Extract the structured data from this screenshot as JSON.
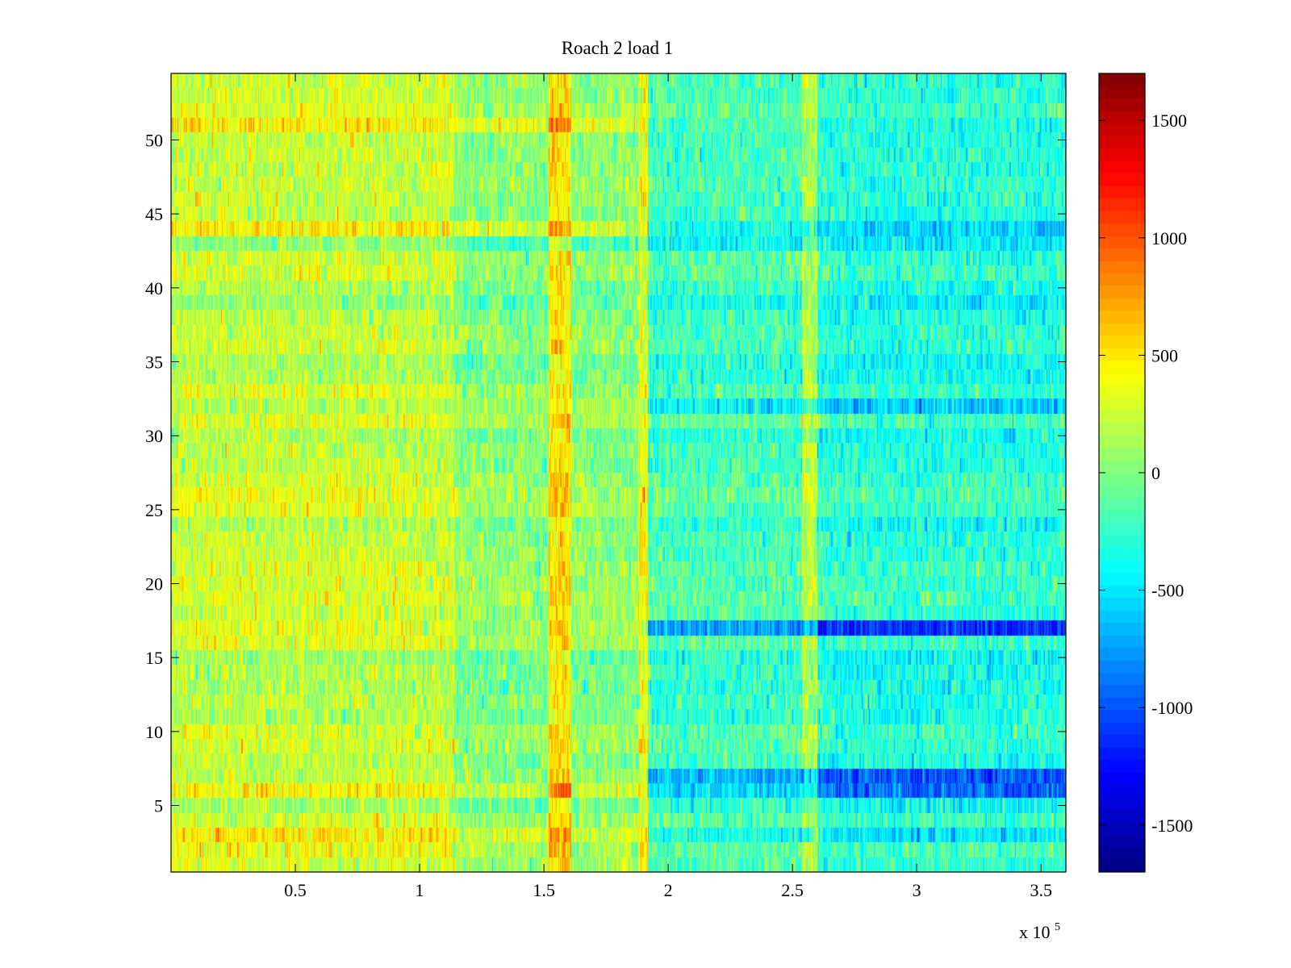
{
  "chart_data": {
    "type": "heatmap",
    "title": "Roach 2 load 1",
    "xlabel": "",
    "ylabel": "",
    "x_range": [
      0,
      360000
    ],
    "y_range": [
      0.5,
      54.5
    ],
    "rows": 54,
    "x_ticks": [
      50000,
      100000,
      150000,
      200000,
      250000,
      300000,
      350000
    ],
    "x_tick_labels": [
      "0.5",
      "1",
      "1.5",
      "2",
      "2.5",
      "3",
      "3.5"
    ],
    "x_exponent_label": {
      "base": "x 10",
      "exponent": "5"
    },
    "y_ticks": [
      5,
      10,
      15,
      20,
      25,
      30,
      35,
      40,
      45,
      50
    ],
    "y_tick_labels": [
      "5",
      "10",
      "15",
      "20",
      "25",
      "30",
      "35",
      "40",
      "45",
      "50"
    ],
    "colormap": "jet",
    "color_range": [
      -1700,
      1700
    ],
    "colorbar_ticks": [
      1500,
      1000,
      500,
      0,
      -500,
      -1000,
      -1500
    ],
    "colorbar_tick_labels": [
      "1500",
      "1000",
      "500",
      "0",
      "-500",
      "-1000",
      "-1500"
    ],
    "approx_segment_means": [
      {
        "x_range": [
          0,
          114000
        ],
        "mean": 260
      },
      {
        "x_range": [
          114000,
          152000
        ],
        "mean": 50
      },
      {
        "x_range": [
          152000,
          161000
        ],
        "mean": 520
      },
      {
        "x_range": [
          161000,
          188000
        ],
        "mean": 60
      },
      {
        "x_range": [
          188000,
          192000
        ],
        "mean": 380
      },
      {
        "x_range": [
          192000,
          254000
        ],
        "mean": -180
      },
      {
        "x_range": [
          254000,
          260000
        ],
        "mean": 180
      },
      {
        "x_range": [
          260000,
          360000
        ],
        "mean": -280
      }
    ],
    "approx_strong_rows": [
      {
        "row": 17,
        "left_mean": 550,
        "right_mean": -900
      },
      {
        "row": 6,
        "left_mean": 450,
        "right_mean": -900
      },
      {
        "row": 7,
        "left_mean": 400,
        "right_mean": -800
      },
      {
        "row": 3,
        "left_mean": 500,
        "right_mean": -500
      },
      {
        "row": 44,
        "left_mean": 500,
        "right_mean": -500
      },
      {
        "row": 32,
        "left_mean": 300,
        "right_mean": -500
      },
      {
        "row": 51,
        "left_mean": 400,
        "right_mean": -400
      }
    ]
  }
}
